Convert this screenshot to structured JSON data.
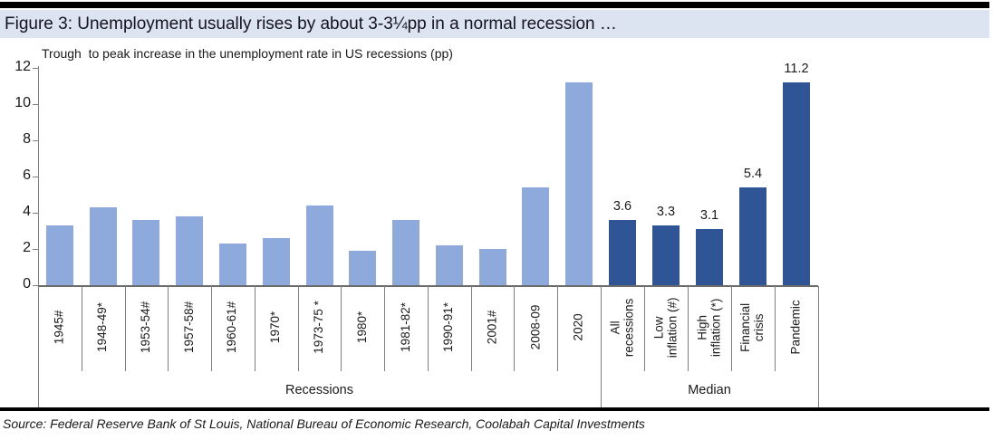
{
  "figure": {
    "title": "Figure 3: Unemployment usually rises by about 3-3¼pp in a normal recession …",
    "source": "Source: Federal Reserve Bank of St Louis, National Bureau of Economic Research, Coolabah Capital Investments"
  },
  "chart_data": {
    "type": "bar",
    "title": "Trough  to peak increase in the unemployment rate in US recessions (pp)",
    "xlabel": "",
    "ylabel": "",
    "ylim": [
      0,
      12
    ],
    "yticks": [
      0,
      2,
      4,
      6,
      8,
      10,
      12
    ],
    "grid": false,
    "legend": "none",
    "groups": [
      {
        "label": "Recessions",
        "bar_color": "#8ea9db",
        "show_value_labels": false,
        "bars": [
          {
            "category": "1945#",
            "value": 3.3
          },
          {
            "category": "1948-49*",
            "value": 4.3
          },
          {
            "category": "1953-54#",
            "value": 3.6
          },
          {
            "category": "1957-58#",
            "value": 3.8
          },
          {
            "category": "1960-61#",
            "value": 2.3
          },
          {
            "category": "1970*",
            "value": 2.6
          },
          {
            "category": "1973-75 *",
            "value": 4.4
          },
          {
            "category": "1980*",
            "value": 1.9
          },
          {
            "category": "1981-82*",
            "value": 3.6
          },
          {
            "category": "1990-91*",
            "value": 2.2
          },
          {
            "category": "2001#",
            "value": 2.0
          },
          {
            "category": "2008-09",
            "value": 5.4
          },
          {
            "category": "2020",
            "value": 11.2
          }
        ]
      },
      {
        "label": "Median",
        "bar_color": "#2f5597",
        "show_value_labels": true,
        "bars": [
          {
            "category": "All\nrecessions",
            "value": 3.6,
            "value_label": "3.6"
          },
          {
            "category": "Low\ninflation (#)",
            "value": 3.3,
            "value_label": "3.3"
          },
          {
            "category": "High\ninflation (*)",
            "value": 3.1,
            "value_label": "3.1"
          },
          {
            "category": "Financial\ncrisis",
            "value": 5.4,
            "value_label": "5.4"
          },
          {
            "category": "Pandemic",
            "value": 11.2,
            "value_label": "11.2"
          }
        ]
      }
    ]
  },
  "colors": {
    "title_band_bg": "#dce3f1",
    "light_bar": "#8ea9db",
    "dark_bar": "#2f5597",
    "axis_line": "#7f7f7f",
    "rule": "#000000"
  }
}
